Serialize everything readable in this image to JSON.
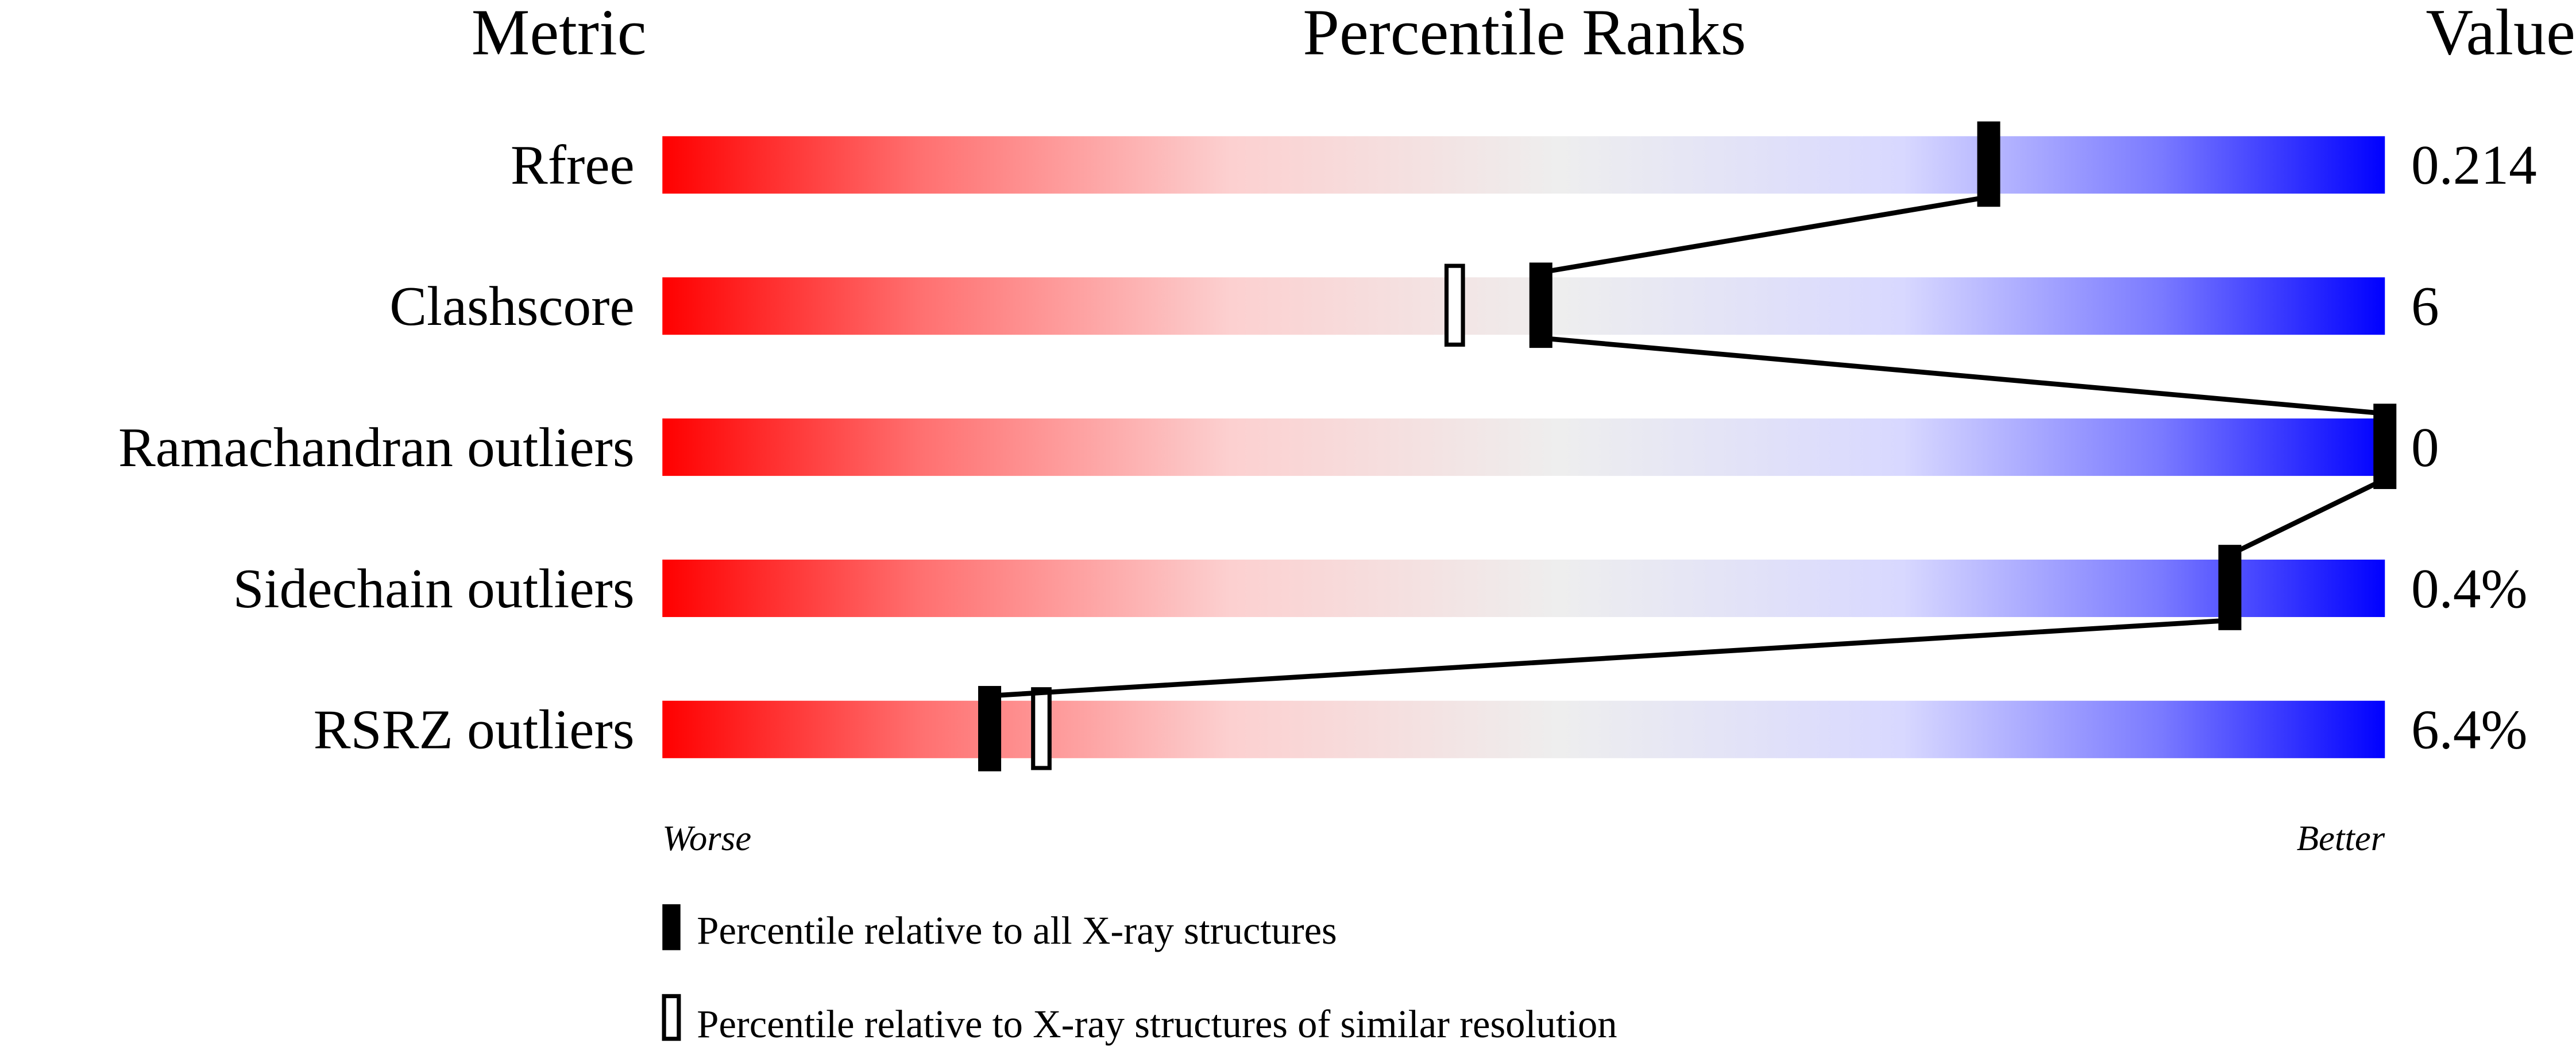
{
  "chart_data": {
    "type": "percentile-slider",
    "headers": {
      "metric": "Metric",
      "ranks": "Percentile Ranks",
      "value": "Value"
    },
    "xlim": [
      0,
      100
    ],
    "axis_labels": {
      "worse": "Worse",
      "better": "Better"
    },
    "rows": [
      {
        "metric": "Rfree",
        "value": "0.214",
        "percentile_all": 77,
        "percentile_similar": null
      },
      {
        "metric": "Clashscore",
        "value": "6",
        "percentile_all": 51,
        "percentile_similar": 46
      },
      {
        "metric": "Ramachandran outliers",
        "value": "0",
        "percentile_all": 100,
        "percentile_similar": null
      },
      {
        "metric": "Sidechain outliers",
        "value": "0.4%",
        "percentile_all": 91,
        "percentile_similar": 91
      },
      {
        "metric": "RSRZ outliers",
        "value": "6.4%",
        "percentile_all": 19,
        "percentile_similar": 22
      }
    ],
    "legend": [
      {
        "marker": "filled",
        "label": "Percentile relative to all X-ray structures"
      },
      {
        "marker": "open",
        "label": "Percentile relative to X-ray structures of similar resolution"
      }
    ],
    "colors": {
      "worse": "#ff0000",
      "middle": "#eeeeee",
      "better": "#0000ff",
      "marker": "#000000"
    }
  }
}
